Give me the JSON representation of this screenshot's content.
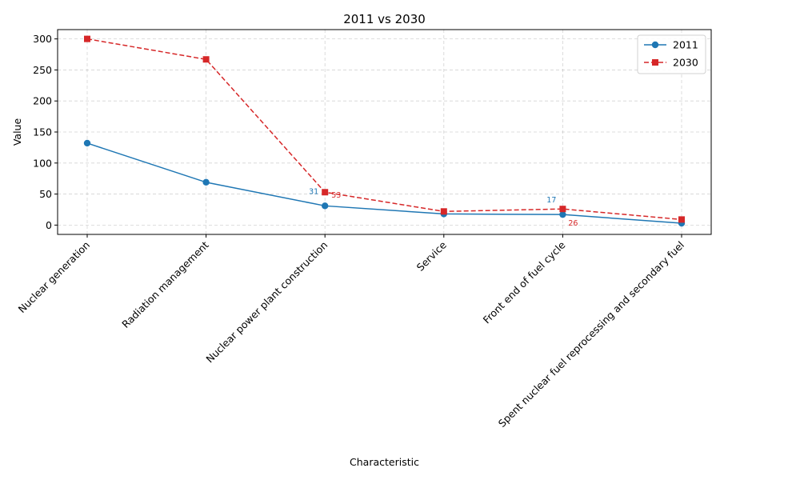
{
  "chart_data": {
    "type": "line",
    "title": "2011 vs 2030",
    "xlabel": "Characteristic",
    "ylabel": "Value",
    "categories": [
      "Nuclear generation",
      "Radiation management",
      "Nuclear power plant construction",
      "Service",
      "Front end of fuel cycle",
      "Spent nuclear fuel reprocessing and secondary fuel"
    ],
    "series": [
      {
        "name": "2011",
        "values": [
          132,
          69,
          31,
          18,
          17,
          3
        ],
        "color": "#1f77b4",
        "marker": "circle",
        "linestyle": "solid"
      },
      {
        "name": "2030",
        "values": [
          300,
          267,
          53,
          22,
          26,
          9
        ],
        "color": "#d62728",
        "marker": "square",
        "linestyle": "dashed"
      }
    ],
    "ylim": [
      -15,
      315
    ],
    "yticks": [
      0,
      50,
      100,
      150,
      200,
      250,
      300
    ],
    "grid": true,
    "legend_position": "top-right",
    "annotations": [
      {
        "series": 0,
        "index": 2,
        "text": "31"
      },
      {
        "series": 1,
        "index": 2,
        "text": "53"
      },
      {
        "series": 0,
        "index": 4,
        "text": "17"
      },
      {
        "series": 1,
        "index": 4,
        "text": "26"
      }
    ]
  }
}
